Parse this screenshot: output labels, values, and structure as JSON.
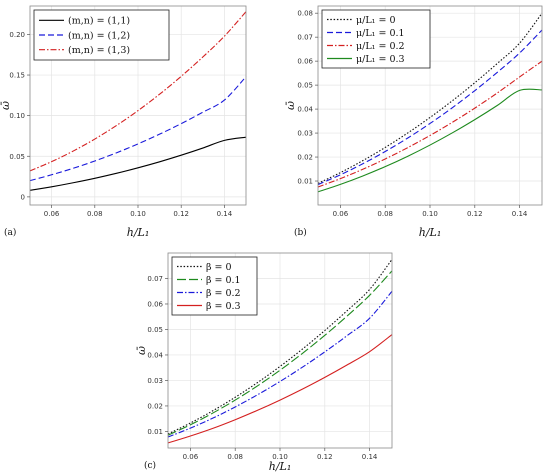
{
  "chart_data": [
    {
      "panel": "(a)",
      "type": "line",
      "xlabel": "h/L₁",
      "ylabel": "ω̄",
      "xlim": [
        0.05,
        0.15
      ],
      "ylim": [
        -0.01,
        0.235
      ],
      "xticks": [
        0.06,
        0.08,
        0.1,
        0.12,
        0.14
      ],
      "xtick_labels": [
        "0.06",
        "0.08",
        "0.10",
        "0.12",
        "0.14"
      ],
      "yticks": [
        0,
        0.05,
        0.1,
        0.15,
        0.2
      ],
      "ytick_labels": [
        "0",
        "0.05",
        "0.10",
        "0.15",
        "0.20"
      ],
      "legend": "top-left",
      "x": [
        0.05,
        0.06,
        0.07,
        0.08,
        0.09,
        0.1,
        0.11,
        0.12,
        0.13,
        0.14,
        0.15
      ],
      "series": [
        {
          "name": "(m,n) = (1,1)",
          "color": "#000000",
          "dash": "solid",
          "values": [
            0.008,
            0.0124,
            0.0174,
            0.0229,
            0.029,
            0.0358,
            0.0432,
            0.0513,
            0.0601,
            0.0696,
            0.0735
          ]
        },
        {
          "name": "(m,n) = (1,2)",
          "color": "#1a1adb",
          "dash": "dash",
          "values": [
            0.02,
            0.0272,
            0.0352,
            0.0442,
            0.0542,
            0.0652,
            0.0772,
            0.0902,
            0.1042,
            0.1192,
            0.148
          ]
        },
        {
          "name": "(m,n) = (1,3)",
          "color": "#d42020",
          "dash": "dashdot",
          "values": [
            0.032,
            0.0434,
            0.0564,
            0.0712,
            0.0878,
            0.1062,
            0.1264,
            0.1484,
            0.1722,
            0.1978,
            0.228
          ]
        }
      ]
    },
    {
      "panel": "(b)",
      "type": "line",
      "xlabel": "h/L₁",
      "ylabel": "ω̄",
      "xlim": [
        0.05,
        0.15
      ],
      "ylim": [
        0.0,
        0.083
      ],
      "xticks": [
        0.06,
        0.08,
        0.1,
        0.12,
        0.14
      ],
      "xtick_labels": [
        "0.06",
        "0.08",
        "0.10",
        "0.12",
        "0.14"
      ],
      "yticks": [
        0.01,
        0.02,
        0.03,
        0.04,
        0.05,
        0.06,
        0.07,
        0.08
      ],
      "ytick_labels": [
        "0.01",
        "0.02",
        "0.03",
        "0.04",
        "0.05",
        "0.06",
        "0.07",
        "0.08"
      ],
      "legend": "top-left",
      "x": [
        0.05,
        0.06,
        0.07,
        0.08,
        0.09,
        0.1,
        0.11,
        0.12,
        0.13,
        0.14,
        0.15
      ],
      "series": [
        {
          "name": "μ/L₁ = 0",
          "color": "#111111",
          "dash": "dot",
          "values": [
            0.009,
            0.0135,
            0.0185,
            0.024,
            0.03,
            0.0365,
            0.0435,
            0.051,
            0.059,
            0.0675,
            0.08
          ]
        },
        {
          "name": "μ/L₁ = 0.1",
          "color": "#1a1adb",
          "dash": "dash",
          "values": [
            0.0085,
            0.0126,
            0.0172,
            0.0223,
            0.0279,
            0.034,
            0.0406,
            0.0477,
            0.0553,
            0.0634,
            0.073
          ]
        },
        {
          "name": "μ/L₁ = 0.2",
          "color": "#d42020",
          "dash": "dashdot",
          "values": [
            0.0075,
            0.011,
            0.0149,
            0.0192,
            0.0239,
            0.029,
            0.0345,
            0.0404,
            0.0467,
            0.0534,
            0.06
          ]
        },
        {
          "name": "μ/L₁ = 0.3",
          "color": "#1e8a1e",
          "dash": "solid",
          "values": [
            0.0055,
            0.0086,
            0.0121,
            0.016,
            0.0203,
            0.025,
            0.0301,
            0.0356,
            0.0415,
            0.0478,
            0.048
          ]
        }
      ]
    },
    {
      "panel": "(c)",
      "type": "line",
      "xlabel": "h/L₁",
      "ylabel": "ω̄",
      "xlim": [
        0.05,
        0.15
      ],
      "ylim": [
        0.0035,
        0.08
      ],
      "xticks": [
        0.06,
        0.08,
        0.1,
        0.12,
        0.14
      ],
      "xtick_labels": [
        "0.06",
        "0.08",
        "0.10",
        "0.12",
        "0.14"
      ],
      "yticks": [
        0.01,
        0.02,
        0.03,
        0.04,
        0.05,
        0.06,
        0.07
      ],
      "ytick_labels": [
        "0.01",
        "0.02",
        "0.03",
        "0.04",
        "0.05",
        "0.06",
        "0.07"
      ],
      "legend": "top-left",
      "x": [
        0.05,
        0.06,
        0.07,
        0.08,
        0.09,
        0.1,
        0.11,
        0.12,
        0.13,
        0.14,
        0.15
      ],
      "series": [
        {
          "name": "β = 0",
          "color": "#111111",
          "dash": "dot",
          "values": [
            0.009,
            0.0133,
            0.0181,
            0.0234,
            0.0292,
            0.0355,
            0.0423,
            0.0496,
            0.0574,
            0.0657,
            0.0775
          ]
        },
        {
          "name": "β = 0.1",
          "color": "#1e8a1e",
          "dash": "longdash",
          "values": [
            0.0085,
            0.0126,
            0.0172,
            0.0223,
            0.0279,
            0.034,
            0.0406,
            0.0477,
            0.0553,
            0.0634,
            0.073
          ]
        },
        {
          "name": "β = 0.2",
          "color": "#1a1adb",
          "dash": "dashdot",
          "values": [
            0.0078,
            0.0113,
            0.0152,
            0.0196,
            0.0244,
            0.0296,
            0.0352,
            0.0412,
            0.0476,
            0.0544,
            0.065
          ]
        },
        {
          "name": "β = 0.3",
          "color": "#d42020",
          "dash": "solid",
          "values": [
            0.0055,
            0.0082,
            0.0112,
            0.0146,
            0.0183,
            0.0223,
            0.0266,
            0.0312,
            0.0361,
            0.0413,
            0.048
          ]
        }
      ]
    }
  ]
}
